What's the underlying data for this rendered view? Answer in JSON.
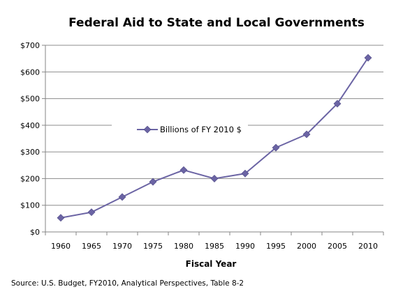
{
  "chart_data": {
    "type": "line",
    "title": "Federal Aid to State and Local Governments",
    "xlabel": "Fiscal Year",
    "ylabel": "",
    "categories": [
      "1960",
      "1965",
      "1970",
      "1975",
      "1980",
      "1985",
      "1990",
      "1995",
      "2000",
      "2005",
      "2010"
    ],
    "series": [
      {
        "name": "Billions of FY 2010 $",
        "values": [
          53,
          74,
          131,
          188,
          232,
          200,
          219,
          316,
          366,
          481,
          653
        ],
        "color": "#6b64a4"
      }
    ],
    "ylim": [
      0,
      700
    ],
    "yticks": [
      0,
      100,
      200,
      300,
      400,
      500,
      600,
      700
    ],
    "ytick_labels": [
      "$0",
      "$100",
      "$200",
      "$300",
      "$400",
      "$500",
      "$600",
      "$700"
    ],
    "grid": true,
    "legend_position": "center-left",
    "source": "Source: U.S. Budget, FY2010, Analytical Perspectives, Table 8-2"
  }
}
